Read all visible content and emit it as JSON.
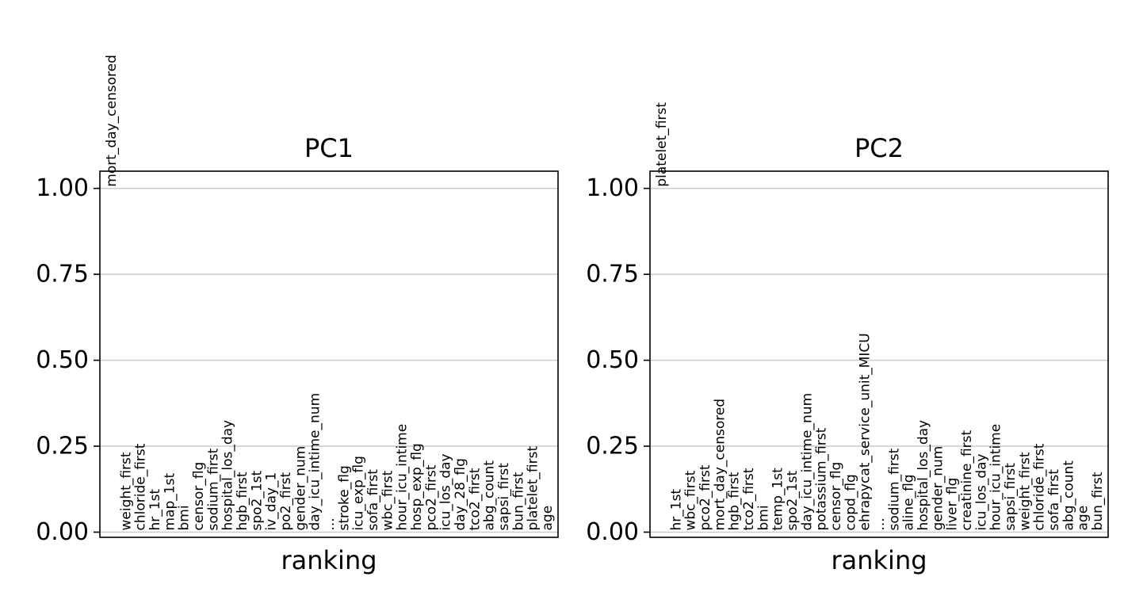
{
  "chart_data": [
    {
      "type": "scatter",
      "title": "PC1",
      "xlabel": "ranking",
      "ylabel": "",
      "ylim": [
        -0.015,
        1.05
      ],
      "yticks": [
        "0.00",
        "0.25",
        "0.50",
        "0.75",
        "1.00"
      ],
      "grid": "horizontal",
      "genes": [
        {
          "name": "mort_day_censored",
          "value": 1.0
        },
        {
          "name": "weight_first",
          "value": 0.0
        },
        {
          "name": "chloride_first",
          "value": 0.0
        },
        {
          "name": "hr_1st",
          "value": 0.0
        },
        {
          "name": "map_1st",
          "value": 0.0
        },
        {
          "name": "bmi",
          "value": 0.0
        },
        {
          "name": "censor_flg",
          "value": 0.0
        },
        {
          "name": "sodium_first",
          "value": 0.0
        },
        {
          "name": "hospital_los_day",
          "value": 0.0
        },
        {
          "name": "hgb_first",
          "value": 0.0
        },
        {
          "name": "spo2_1st",
          "value": 0.0
        },
        {
          "name": "iv_day_1",
          "value": 0.0
        },
        {
          "name": "po2_first",
          "value": 0.0
        },
        {
          "name": "gender_num",
          "value": 0.0
        },
        {
          "name": "day_icu_intime_num",
          "value": 0.0
        },
        {
          "name": "...",
          "value": 0.0
        },
        {
          "name": "stroke_flg",
          "value": 0.0
        },
        {
          "name": "icu_exp_flg",
          "value": 0.0
        },
        {
          "name": "sofa_first",
          "value": 0.0
        },
        {
          "name": "wbc_first",
          "value": 0.0
        },
        {
          "name": "hour_icu_intime",
          "value": 0.0
        },
        {
          "name": "hosp_exp_flg",
          "value": 0.0
        },
        {
          "name": "pco2_first",
          "value": 0.0
        },
        {
          "name": "icu_los_day",
          "value": 0.0
        },
        {
          "name": "day_28_flg",
          "value": 0.0
        },
        {
          "name": "tco2_first",
          "value": 0.0
        },
        {
          "name": "abg_count",
          "value": 0.0
        },
        {
          "name": "sapsi_first",
          "value": 0.0
        },
        {
          "name": "bun_first",
          "value": 0.0
        },
        {
          "name": "platelet_first",
          "value": 0.0
        },
        {
          "name": "age",
          "value": 0.0
        }
      ]
    },
    {
      "type": "scatter",
      "title": "PC2",
      "xlabel": "ranking",
      "ylabel": "",
      "ylim": [
        -0.015,
        1.05
      ],
      "yticks": [
        "0.00",
        "0.25",
        "0.50",
        "0.75",
        "1.00"
      ],
      "grid": "horizontal",
      "genes": [
        {
          "name": "platelet_first",
          "value": 1.0
        },
        {
          "name": "hr_1st",
          "value": 0.0
        },
        {
          "name": "wbc_first",
          "value": 0.0
        },
        {
          "name": "pco2_first",
          "value": 0.0
        },
        {
          "name": "mort_day_censored",
          "value": 0.0
        },
        {
          "name": "hgb_first",
          "value": 0.0
        },
        {
          "name": "tco2_first",
          "value": 0.0
        },
        {
          "name": "bmi",
          "value": 0.0
        },
        {
          "name": "temp_1st",
          "value": 0.0
        },
        {
          "name": "spo2_1st",
          "value": 0.0
        },
        {
          "name": "day_icu_intime_num",
          "value": 0.0
        },
        {
          "name": "potassium_first",
          "value": 0.0
        },
        {
          "name": "censor_flg",
          "value": 0.0
        },
        {
          "name": "copd_flg",
          "value": 0.0
        },
        {
          "name": "ehrapycat_service_unit_MICU",
          "value": 0.0
        },
        {
          "name": "...",
          "value": 0.0
        },
        {
          "name": "sodium_first",
          "value": 0.0
        },
        {
          "name": "aline_flg",
          "value": 0.0
        },
        {
          "name": "hospital_los_day",
          "value": 0.0
        },
        {
          "name": "gender_num",
          "value": 0.0
        },
        {
          "name": "liver_flg",
          "value": 0.0
        },
        {
          "name": "creatinine_first",
          "value": 0.0
        },
        {
          "name": "icu_los_day",
          "value": 0.0
        },
        {
          "name": "hour_icu_intime",
          "value": 0.0
        },
        {
          "name": "sapsi_first",
          "value": 0.0
        },
        {
          "name": "weight_first",
          "value": 0.0
        },
        {
          "name": "chloride_first",
          "value": 0.0
        },
        {
          "name": "sofa_first",
          "value": 0.0
        },
        {
          "name": "abg_count",
          "value": 0.0
        },
        {
          "name": "age",
          "value": 0.0
        },
        {
          "name": "bun_first",
          "value": 0.0
        }
      ]
    }
  ]
}
